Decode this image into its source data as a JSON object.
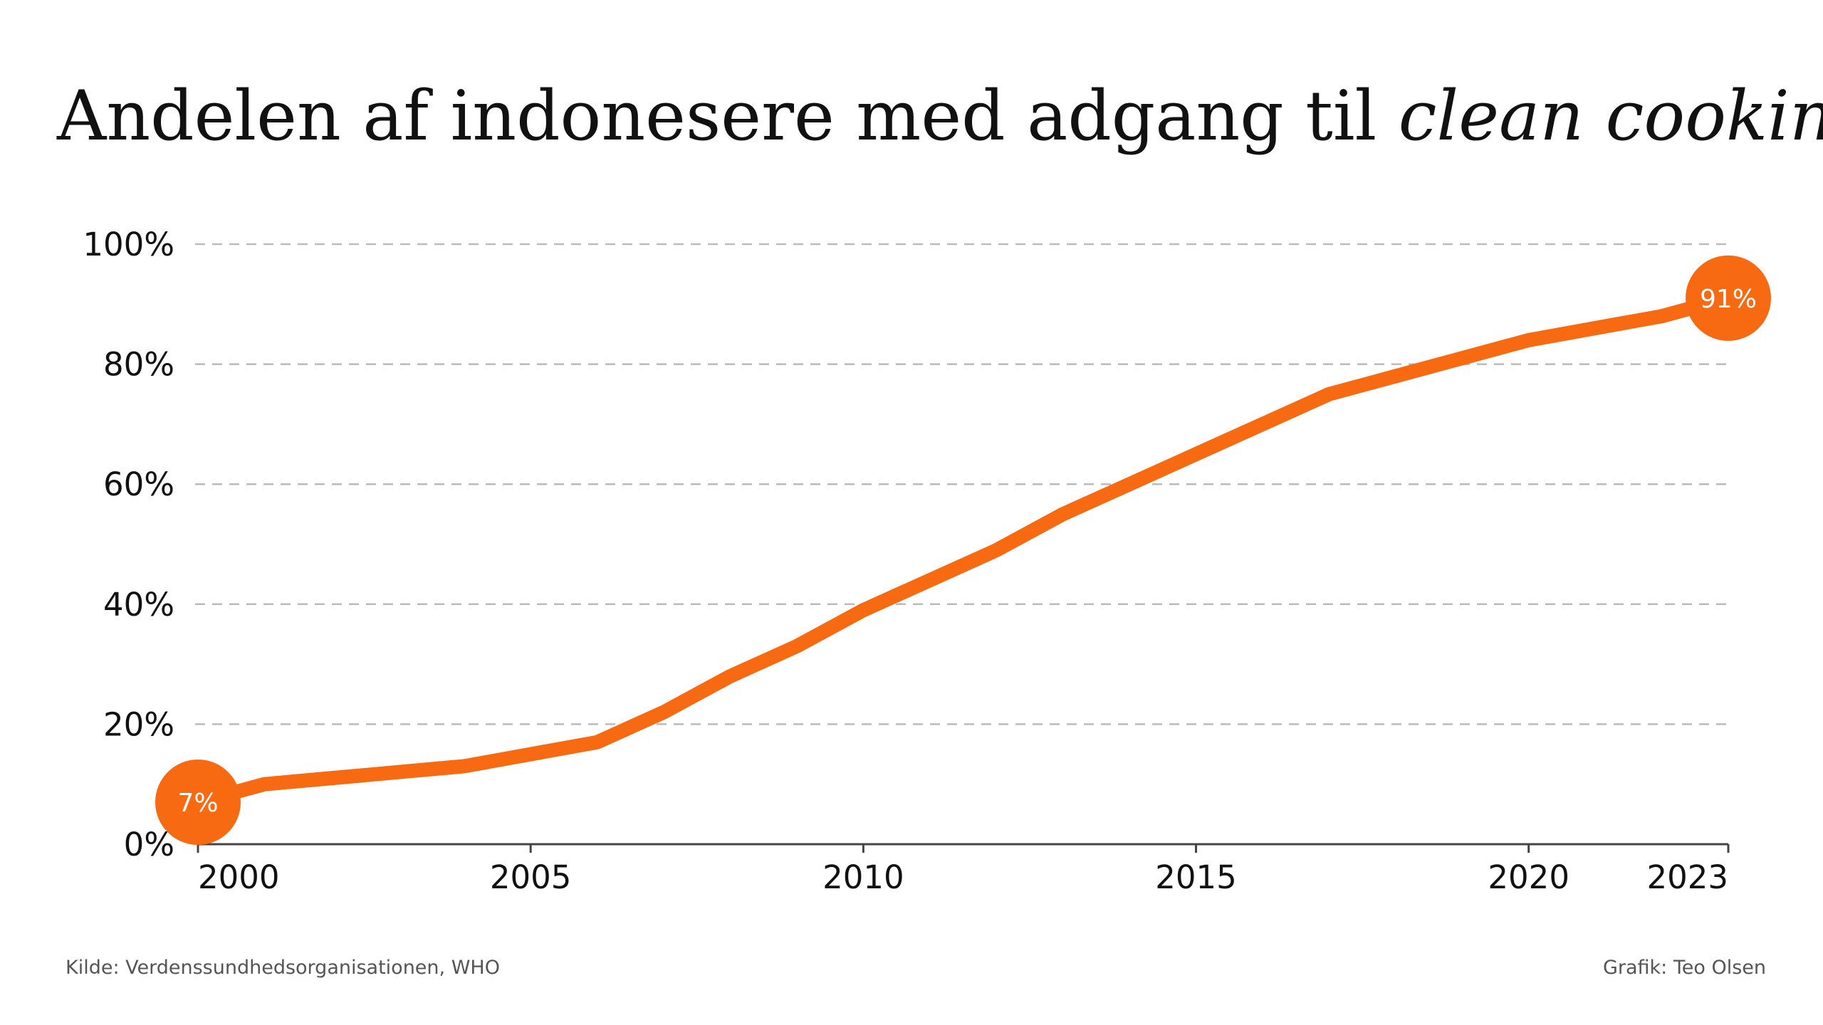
{
  "chart_data": {
    "type": "line",
    "title": "Andelen af indonesere med adgang til",
    "title_emphasis": "clean cooking",
    "source": "Kilde: Verdenssundhedsorganisationen, WHO",
    "credit": "Grafik: Teo Olsen",
    "x": [
      2000,
      2001,
      2002,
      2003,
      2004,
      2005,
      2006,
      2007,
      2008,
      2009,
      2010,
      2011,
      2012,
      2013,
      2014,
      2015,
      2016,
      2017,
      2018,
      2019,
      2020,
      2021,
      2022,
      2023
    ],
    "series": [
      {
        "color": "#f86a12",
        "values": [
          7,
          10,
          11,
          12,
          13,
          15,
          17,
          22,
          28,
          33,
          39,
          44,
          49,
          55,
          60,
          65,
          70,
          75,
          78,
          81,
          84,
          86,
          88,
          91
        ],
        "value_labels": [
          "7%",
          null,
          null,
          null,
          null,
          null,
          null,
          null,
          null,
          null,
          null,
          null,
          null,
          null,
          null,
          null,
          null,
          null,
          null,
          null,
          null,
          null,
          null,
          "91%"
        ]
      }
    ],
    "xlim": [
      2000,
      2023
    ],
    "xticks": [
      2000,
      2005,
      2010,
      2015,
      2020,
      2023
    ],
    "ylim": [
      0,
      100
    ],
    "yticks": [
      {
        "value": 0,
        "label": "0%"
      },
      {
        "value": 20,
        "label": "20%"
      },
      {
        "value": 40,
        "label": "40%"
      },
      {
        "value": 60,
        "label": "60%"
      },
      {
        "value": 80,
        "label": "80%"
      },
      {
        "value": 100,
        "label": "100%"
      }
    ],
    "grid": true
  }
}
